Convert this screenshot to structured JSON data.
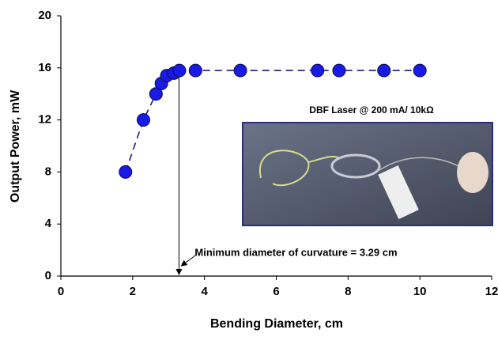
{
  "chart_data": {
    "type": "scatter",
    "xlabel": "Bending Diameter, cm",
    "ylabel": "Output Power, mW",
    "x": [
      1.8,
      2.3,
      2.65,
      2.8,
      2.95,
      3.15,
      3.3,
      3.75,
      5,
      7.15,
      7.75,
      9,
      10
    ],
    "values": [
      8,
      12,
      14,
      14.8,
      15.4,
      15.6,
      15.8,
      15.8,
      15.8,
      15.8,
      15.8,
      15.8,
      15.8
    ],
    "color": "#1a1ae6",
    "line_color": "#1a1a80",
    "xlim": [
      0,
      12
    ],
    "xticks": [
      0,
      2,
      4,
      6,
      8,
      10,
      12
    ],
    "ylim": [
      0,
      20
    ],
    "yticks": [
      0,
      4,
      8,
      12,
      16,
      20
    ],
    "annotation": {
      "text": "Minimum diameter of curvature = 3.29 cm",
      "x": 3.29
    },
    "inset_caption": "DBF Laser @ 200 mA/ 10kΩ"
  }
}
